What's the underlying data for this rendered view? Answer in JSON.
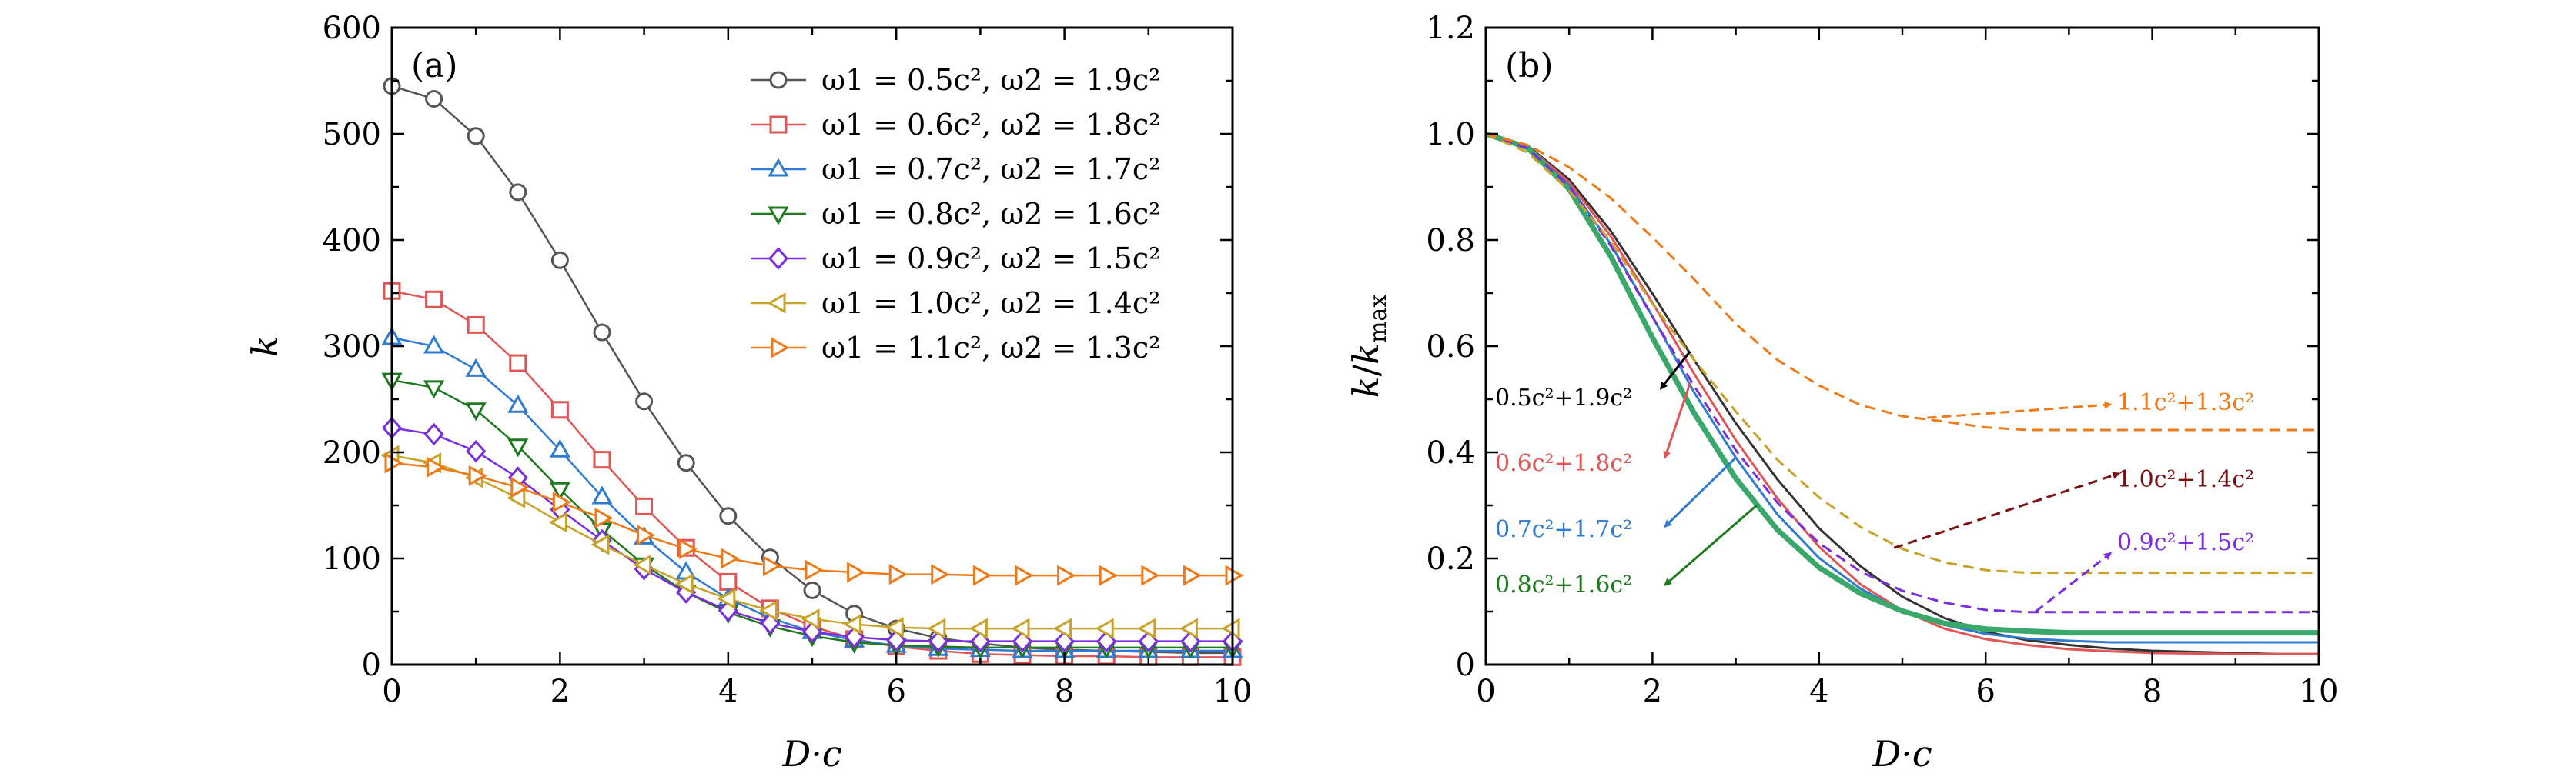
{
  "chart_data": [
    {
      "type": "line",
      "panel_label": "(a)",
      "title": "",
      "xlabel": "D·c",
      "ylabel": "k",
      "xlim": [
        0,
        10
      ],
      "ylim": [
        0,
        600
      ],
      "x_ticks": [
        "0",
        "2",
        "4",
        "6",
        "8",
        "10"
      ],
      "y_ticks": [
        "0",
        "100",
        "200",
        "300",
        "400",
        "500",
        "600"
      ],
      "legend_position": "top-right",
      "x": [
        0,
        0.5,
        1,
        1.5,
        2,
        2.5,
        3,
        3.5,
        4,
        4.5,
        5,
        5.5,
        6,
        6.5,
        7,
        7.5,
        8,
        8.5,
        9,
        9.5,
        10
      ],
      "series": [
        {
          "name": "ω1 = 0.5c², ω2 = 1.9c²",
          "color": "#555555",
          "marker": "circle",
          "values": [
            545,
            533,
            498,
            445,
            381,
            313,
            248,
            190,
            140,
            101,
            70,
            48,
            34,
            25,
            20,
            16,
            14,
            13,
            12,
            11,
            11
          ]
        },
        {
          "name": "ω1 = 0.6c², ω2 = 1.8c²",
          "color": "#e05555",
          "marker": "square",
          "values": [
            352,
            344,
            320,
            284,
            240,
            193,
            149,
            110,
            78,
            53,
            36,
            24,
            17,
            13,
            10,
            9,
            8,
            8,
            7,
            7,
            7
          ]
        },
        {
          "name": "ω1 = 0.7c², ω2 = 1.7c²",
          "color": "#2e7bd1",
          "marker": "triangle-up",
          "values": [
            308,
            300,
            278,
            244,
            202,
            158,
            120,
            87,
            62,
            44,
            31,
            23,
            18,
            15,
            14,
            13,
            13,
            13,
            13,
            13,
            13
          ]
        },
        {
          "name": "ω1 = 0.8c², ω2 = 1.6c²",
          "color": "#1f7a1f",
          "marker": "triangle-down",
          "values": [
            268,
            261,
            240,
            206,
            165,
            127,
            94,
            68,
            49,
            36,
            27,
            21,
            18,
            17,
            16,
            16,
            16,
            16,
            16,
            16,
            16
          ]
        },
        {
          "name": "ω1 = 0.9c², ω2 = 1.5c²",
          "color": "#7a2ee0",
          "marker": "diamond",
          "values": [
            223,
            217,
            201,
            176,
            146,
            117,
            90,
            68,
            51,
            39,
            31,
            26,
            23,
            22,
            22,
            22,
            22,
            22,
            22,
            22,
            22
          ]
        },
        {
          "name": "ω1 = 1.0c², ω2 = 1.4c²",
          "color": "#c9a22a",
          "marker": "triangle-left",
          "values": [
            197,
            190,
            176,
            157,
            134,
            113,
            94,
            76,
            62,
            51,
            43,
            38,
            35,
            34,
            34,
            34,
            34,
            34,
            34,
            34,
            34
          ]
        },
        {
          "name": "ω1 = 1.1c², ω2 = 1.3c²",
          "color": "#ee7a1a",
          "marker": "triangle-right",
          "values": [
            190,
            186,
            178,
            167,
            153,
            138,
            122,
            109,
            100,
            93,
            89,
            87,
            85,
            85,
            84,
            84,
            84,
            84,
            84,
            84,
            84
          ]
        }
      ]
    },
    {
      "type": "line",
      "panel_label": "(b)",
      "title": "",
      "xlabel": "D·c",
      "ylabel": "k/k_max",
      "ylabel_main": "k",
      "ylabel_sub": "max",
      "xlim": [
        0,
        10
      ],
      "ylim": [
        0,
        1.2
      ],
      "x_ticks": [
        "0",
        "2",
        "4",
        "6",
        "8",
        "10"
      ],
      "y_ticks": [
        "0",
        "0.2",
        "0.4",
        "0.6",
        "0.8",
        "1.0",
        "1.2"
      ],
      "x": [
        0,
        0.5,
        1,
        1.5,
        2,
        2.5,
        3,
        3.5,
        4,
        4.5,
        5,
        5.5,
        6,
        6.5,
        7,
        7.5,
        8,
        8.5,
        9,
        9.5,
        10
      ],
      "series": [
        {
          "name": "0.5c²+1.9c²",
          "color": "#333333",
          "style": "solid",
          "values": [
            1.0,
            0.978,
            0.914,
            0.817,
            0.699,
            0.574,
            0.455,
            0.349,
            0.257,
            0.185,
            0.128,
            0.088,
            0.062,
            0.046,
            0.037,
            0.03,
            0.026,
            0.024,
            0.022,
            0.02,
            0.02
          ]
        },
        {
          "name": "0.6c²+1.8c²",
          "color": "#e05555",
          "style": "solid",
          "values": [
            1.0,
            0.977,
            0.909,
            0.807,
            0.682,
            0.548,
            0.423,
            0.313,
            0.222,
            0.151,
            0.102,
            0.068,
            0.048,
            0.037,
            0.029,
            0.025,
            0.022,
            0.021,
            0.02,
            0.02,
            0.02
          ]
        },
        {
          "name": "0.7c²+1.7c²",
          "color": "#2e7bd1",
          "style": "solid",
          "values": [
            1.0,
            0.974,
            0.903,
            0.792,
            0.656,
            0.513,
            0.39,
            0.283,
            0.201,
            0.143,
            0.101,
            0.075,
            0.058,
            0.049,
            0.045,
            0.042,
            0.042,
            0.042,
            0.042,
            0.042,
            0.042
          ]
        },
        {
          "name": "0.8c²+1.6c²",
          "color": "#3aa86a",
          "style": "solid",
          "values": [
            1.0,
            0.974,
            0.896,
            0.769,
            0.616,
            0.474,
            0.351,
            0.254,
            0.183,
            0.134,
            0.101,
            0.078,
            0.067,
            0.063,
            0.06,
            0.06,
            0.06,
            0.06,
            0.06,
            0.06,
            0.06
          ]
        },
        {
          "name": "0.9c²+1.5c²",
          "color": "#7a2ee0",
          "style": "dashed",
          "values": [
            1.0,
            0.973,
            0.901,
            0.789,
            0.655,
            0.525,
            0.404,
            0.305,
            0.229,
            0.175,
            0.139,
            0.117,
            0.103,
            0.099,
            0.099,
            0.099,
            0.099,
            0.099,
            0.099,
            0.099,
            0.099
          ]
        },
        {
          "name": "1.0c²+1.4c²",
          "color": "#c9a22a",
          "style": "dashed",
          "values": [
            1.0,
            0.965,
            0.893,
            0.797,
            0.68,
            0.574,
            0.477,
            0.386,
            0.315,
            0.259,
            0.218,
            0.193,
            0.178,
            0.173,
            0.173,
            0.173,
            0.173,
            0.173,
            0.173,
            0.173,
            0.173
          ]
        },
        {
          "name": "1.1c²+1.3c²",
          "color": "#ee7a1a",
          "style": "dashed",
          "values": [
            1.0,
            0.979,
            0.937,
            0.879,
            0.805,
            0.726,
            0.642,
            0.574,
            0.526,
            0.489,
            0.468,
            0.458,
            0.447,
            0.442,
            0.442,
            0.442,
            0.442,
            0.442,
            0.442,
            0.442,
            0.442
          ]
        }
      ],
      "annotations": [
        {
          "text": "0.5c²+1.9c²",
          "color": "#000000",
          "arrow_color": "#000000",
          "arrow_from": [
            2.45,
            0.59
          ],
          "arrow_to": [
            2.1,
            0.52
          ]
        },
        {
          "text": "0.6c²+1.8c²",
          "color": "#e05555",
          "arrow_color": "#e05555",
          "arrow_from": [
            2.45,
            0.53
          ],
          "arrow_to": [
            2.15,
            0.39
          ]
        },
        {
          "text": "0.7c²+1.7c²",
          "color": "#2e7bd1",
          "arrow_color": "#2e7bd1",
          "arrow_from": [
            3.0,
            0.39
          ],
          "arrow_to": [
            2.15,
            0.26
          ]
        },
        {
          "text": "0.8c²+1.6c²",
          "color": "#1f7a1f",
          "arrow_color": "#1f7a1f",
          "arrow_from": [
            3.25,
            0.3
          ],
          "arrow_to": [
            2.15,
            0.15
          ]
        },
        {
          "text": "1.1c²+1.3c²",
          "color": "#ee7a1a",
          "arrow_color": "#ee7a1a",
          "arrow_from": [
            5.3,
            0.465
          ],
          "arrow_to": [
            7.5,
            0.49
          ]
        },
        {
          "text": "1.0c²+1.4c²",
          "color": "#7a1010",
          "arrow_color": "#7a1010",
          "arrow_from": [
            4.9,
            0.22
          ],
          "arrow_to": [
            7.6,
            0.36
          ]
        },
        {
          "text": "0.9c²+1.5c²",
          "color": "#7a2ee0",
          "arrow_color": "#7a2ee0",
          "arrow_from": [
            6.6,
            0.1
          ],
          "arrow_to": [
            7.5,
            0.21
          ]
        }
      ]
    }
  ]
}
